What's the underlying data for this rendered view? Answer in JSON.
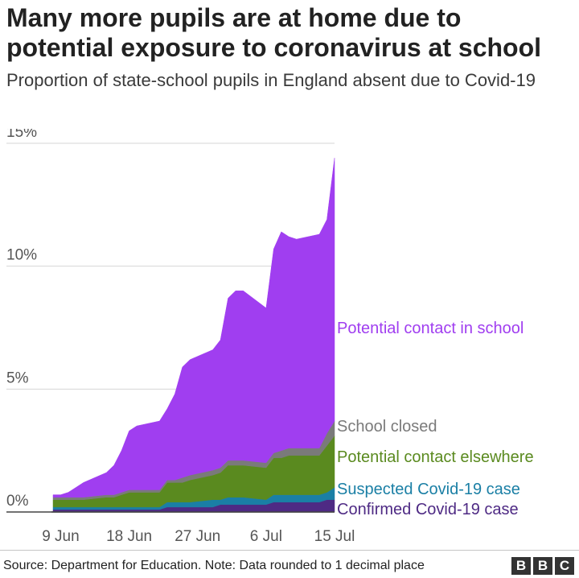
{
  "header": {
    "title": "Many more pupils are at home due to potential exposure to coronavirus at school",
    "subtitle": "Proportion of state-school pupils in England absent due to Covid-19"
  },
  "footer": {
    "source": "Source: Department for Education. Note: Data rounded to 1 decimal place",
    "logo_letters": [
      "B",
      "B",
      "C"
    ]
  },
  "chart_data": {
    "type": "area",
    "stacked": true,
    "grid": true,
    "legend": "inline-right",
    "ylim": [
      0,
      15
    ],
    "y_ticks": [
      0,
      5,
      10,
      15
    ],
    "y_tick_labels": [
      "0%",
      "5%",
      "10%",
      "15%"
    ],
    "x_range": [
      "2020-06-08",
      "2020-07-15"
    ],
    "x_ticks": [
      "2020-06-09",
      "2020-06-18",
      "2020-06-27",
      "2020-07-06",
      "2020-07-15"
    ],
    "x_tick_labels": [
      "9 Jun",
      "18 Jun",
      "27 Jun",
      "6 Jul",
      "15 Jul"
    ],
    "x": [
      "2020-06-08",
      "2020-06-09",
      "2020-06-10",
      "2020-06-11",
      "2020-06-12",
      "2020-06-15",
      "2020-06-16",
      "2020-06-17",
      "2020-06-18",
      "2020-06-19",
      "2020-06-22",
      "2020-06-23",
      "2020-06-24",
      "2020-06-25",
      "2020-06-26",
      "2020-06-29",
      "2020-06-30",
      "2020-07-01",
      "2020-07-02",
      "2020-07-03",
      "2020-07-06",
      "2020-07-07",
      "2020-07-08",
      "2020-07-09",
      "2020-07-10",
      "2020-07-13",
      "2020-07-14",
      "2020-07-15"
    ],
    "series": [
      {
        "name": "Confirmed Covid-19 case",
        "color": "#4e2a84",
        "values": [
          0.1,
          0.1,
          0.1,
          0.1,
          0.1,
          0.1,
          0.1,
          0.1,
          0.1,
          0.1,
          0.1,
          0.2,
          0.2,
          0.2,
          0.2,
          0.2,
          0.3,
          0.3,
          0.3,
          0.3,
          0.3,
          0.4,
          0.4,
          0.4,
          0.4,
          0.4,
          0.5,
          0.5
        ]
      },
      {
        "name": "Suspected Covid-19 case",
        "color": "#1a7fa5",
        "values": [
          0.1,
          0.1,
          0.1,
          0.1,
          0.1,
          0.1,
          0.1,
          0.1,
          0.1,
          0.1,
          0.1,
          0.2,
          0.2,
          0.2,
          0.2,
          0.3,
          0.2,
          0.3,
          0.3,
          0.3,
          0.2,
          0.3,
          0.3,
          0.3,
          0.3,
          0.3,
          0.3,
          0.5
        ]
      },
      {
        "name": "Potential contact elsewhere",
        "color": "#5a8a1f",
        "values": [
          0.3,
          0.3,
          0.3,
          0.3,
          0.3,
          0.4,
          0.4,
          0.5,
          0.6,
          0.6,
          0.6,
          0.8,
          0.8,
          0.8,
          0.9,
          1.0,
          1.1,
          1.3,
          1.3,
          1.3,
          1.3,
          1.5,
          1.5,
          1.6,
          1.6,
          1.6,
          1.9,
          2.1
        ]
      },
      {
        "name": "School closed",
        "color": "#7a7a7a",
        "values": [
          0.1,
          0.1,
          0.1,
          0.1,
          0.1,
          0.1,
          0.1,
          0.1,
          0.1,
          0.1,
          0.1,
          0.1,
          0.1,
          0.2,
          0.2,
          0.2,
          0.2,
          0.2,
          0.2,
          0.2,
          0.2,
          0.2,
          0.3,
          0.3,
          0.3,
          0.3,
          0.5,
          0.6
        ]
      },
      {
        "name": "Potential contact in school",
        "color": "#a03ef0",
        "values": [
          0.1,
          0.1,
          0.2,
          0.4,
          0.6,
          0.9,
          1.2,
          1.7,
          2.4,
          2.6,
          2.8,
          2.9,
          3.5,
          4.5,
          4.7,
          4.9,
          5.2,
          6.6,
          6.9,
          6.9,
          6.3,
          8.3,
          8.9,
          8.6,
          8.5,
          8.7,
          8.7,
          10.7
        ]
      }
    ]
  }
}
